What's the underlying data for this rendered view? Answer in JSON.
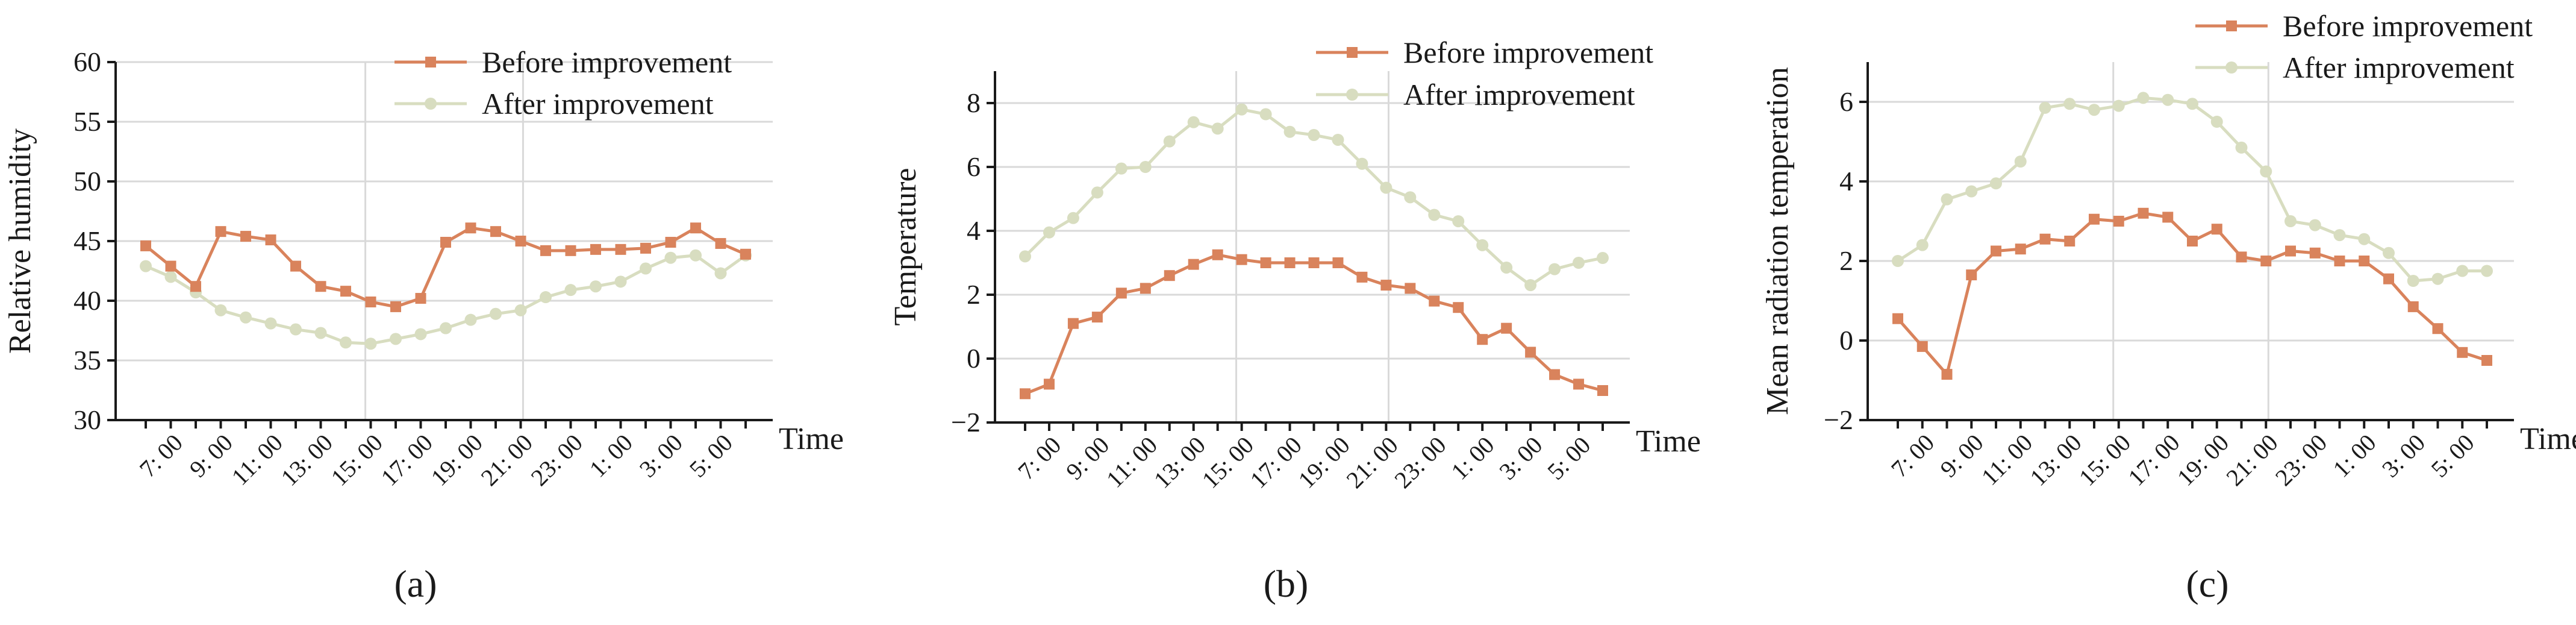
{
  "colors": {
    "before": "#d9835c",
    "after": "#d8ddc0"
  },
  "chart_data": [
    {
      "type": "line",
      "panel": "a",
      "ylabel": "Relative humidity",
      "xlabel": "Time",
      "ylim": [
        30,
        60
      ],
      "yticks": [
        30,
        35,
        40,
        45,
        50,
        55,
        60
      ],
      "xtick_labels": [
        "7: 00",
        "9: 00",
        "11: 00",
        "13: 00",
        "15: 00",
        "17: 00",
        "19: 00",
        "21: 00",
        "23: 00",
        "1: 00",
        "3: 00",
        "5: 00"
      ],
      "legend": [
        "Before improvement",
        "After improvement"
      ],
      "series": [
        {
          "name": "Before improvement",
          "values": [
            44.6,
            42.9,
            41.2,
            45.8,
            45.4,
            45.1,
            42.9,
            41.2,
            40.8,
            39.9,
            39.5,
            40.2,
            44.9,
            46.1,
            45.8,
            45.0,
            44.2,
            44.2,
            44.3,
            44.3,
            44.4,
            44.9,
            46.1,
            44.8,
            43.9
          ]
        },
        {
          "name": "After improvement",
          "values": [
            42.9,
            42.0,
            40.7,
            39.2,
            38.6,
            38.1,
            37.6,
            37.3,
            36.5,
            36.4,
            36.8,
            37.2,
            37.7,
            38.4,
            38.9,
            39.2,
            40.3,
            40.9,
            41.2,
            41.6,
            42.7,
            43.6,
            43.8,
            42.3,
            43.8
          ]
        }
      ]
    },
    {
      "type": "line",
      "panel": "b",
      "ylabel": "Temperature",
      "xlabel": "Time",
      "ylim": [
        -2,
        9
      ],
      "yticks": [
        -2,
        0,
        2,
        4,
        6,
        8
      ],
      "ytick_labels": [
        "−2",
        "0",
        "2",
        "4",
        "6",
        "8"
      ],
      "xtick_labels": [
        "7: 00",
        "9: 00",
        "11: 00",
        "13: 00",
        "15: 00",
        "17: 00",
        "19: 00",
        "21: 00",
        "23: 00",
        "1: 00",
        "3: 00",
        "5: 00"
      ],
      "legend": [
        "Before improvement",
        "After improvement"
      ],
      "series": [
        {
          "name": "Before improvement",
          "values": [
            -1.1,
            -0.8,
            1.1,
            1.3,
            2.05,
            2.2,
            2.6,
            2.95,
            3.25,
            3.1,
            3.0,
            3.0,
            3.0,
            3.0,
            2.55,
            2.3,
            2.2,
            1.8,
            1.6,
            0.6,
            0.95,
            0.2,
            -0.5,
            -0.8,
            -1.0
          ]
        },
        {
          "name": "After improvement",
          "values": [
            3.2,
            3.95,
            4.4,
            5.2,
            5.95,
            6.0,
            6.8,
            7.4,
            7.2,
            7.8,
            7.65,
            7.1,
            7.0,
            6.85,
            6.1,
            5.35,
            5.05,
            4.5,
            4.3,
            3.55,
            2.85,
            2.3,
            2.8,
            3.0,
            3.15
          ]
        }
      ]
    },
    {
      "type": "line",
      "panel": "c",
      "ylabel": "Mean radiation temperation",
      "xlabel": "Time",
      "ylim": [
        -2,
        7
      ],
      "yticks": [
        -2,
        0,
        2,
        4,
        6
      ],
      "ytick_labels": [
        "−2",
        "0",
        "2",
        "4",
        "6"
      ],
      "xtick_labels": [
        "7: 00",
        "9: 00",
        "11: 00",
        "13: 00",
        "15: 00",
        "17: 00",
        "19: 00",
        "21: 00",
        "23: 00",
        "1: 00",
        "3: 00",
        "5: 00"
      ],
      "legend": [
        "Before improvement",
        "After improvement"
      ],
      "series": [
        {
          "name": "Before improvement",
          "values": [
            0.55,
            -0.15,
            -0.85,
            1.65,
            2.25,
            2.3,
            2.55,
            2.5,
            3.05,
            3.0,
            3.2,
            3.1,
            2.5,
            2.8,
            2.1,
            2.0,
            2.25,
            2.2,
            2.0,
            2.0,
            1.55,
            0.85,
            0.3,
            -0.3,
            -0.5
          ]
        },
        {
          "name": "After improvement",
          "values": [
            2.0,
            2.4,
            3.55,
            3.75,
            3.95,
            4.5,
            5.85,
            5.95,
            5.8,
            5.9,
            6.1,
            6.05,
            5.95,
            5.5,
            4.85,
            4.25,
            3.0,
            2.9,
            2.65,
            2.55,
            2.2,
            1.5,
            1.55,
            1.75,
            1.75
          ]
        }
      ]
    }
  ],
  "panel_labels": [
    "(a)",
    "(b)",
    "(c)"
  ]
}
